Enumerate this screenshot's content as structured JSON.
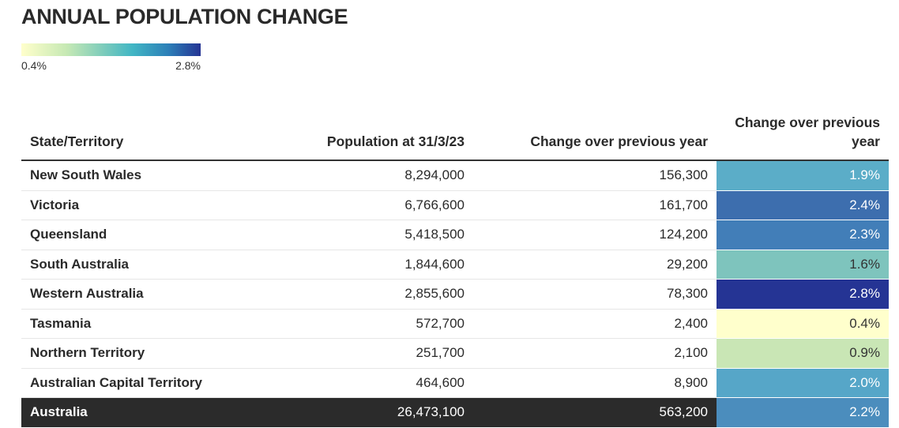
{
  "title": "ANNUAL POPULATION CHANGE",
  "legend": {
    "min_label": "0.4%",
    "max_label": "2.8%"
  },
  "chart_data": {
    "type": "table",
    "title": "ANNUAL POPULATION CHANGE",
    "color_scale": {
      "min": 0.4,
      "max": 2.8,
      "colors": [
        "#ffffcc",
        "#c7e9b4",
        "#7fcdbb",
        "#41b6c4",
        "#2c7fb8",
        "#253494"
      ]
    },
    "columns": [
      "State/Territory",
      "Population at 31/3/23",
      "Change over previous year",
      "Change over previous year"
    ],
    "rows": [
      {
        "state": "New South Wales",
        "population": "8,294,000",
        "change": "156,300",
        "pct": "1.9%",
        "pct_value": 1.9,
        "color": "#5badc8"
      },
      {
        "state": "Victoria",
        "population": "6,766,600",
        "change": "161,700",
        "pct": "2.4%",
        "pct_value": 2.4,
        "color": "#3d6eae"
      },
      {
        "state": "Queensland",
        "population": "5,418,500",
        "change": "124,200",
        "pct": "2.3%",
        "pct_value": 2.3,
        "color": "#427eb8"
      },
      {
        "state": "South Australia",
        "population": "1,844,600",
        "change": "29,200",
        "pct": "1.6%",
        "pct_value": 1.6,
        "color": "#7ec4bd"
      },
      {
        "state": "Western Australia",
        "population": "2,855,600",
        "change": "78,300",
        "pct": "2.8%",
        "pct_value": 2.8,
        "color": "#253494"
      },
      {
        "state": "Tasmania",
        "population": "572,700",
        "change": "2,400",
        "pct": "0.4%",
        "pct_value": 0.4,
        "color": "#ffffcc"
      },
      {
        "state": "Northern Territory",
        "population": "251,700",
        "change": "2,100",
        "pct": "0.9%",
        "pct_value": 0.9,
        "color": "#c9e6b5"
      },
      {
        "state": "Australian Capital Territory",
        "population": "464,600",
        "change": "8,900",
        "pct": "2.0%",
        "pct_value": 2.0,
        "color": "#56a6c8"
      }
    ],
    "total": {
      "state": "Australia",
      "population": "26,473,100",
      "change": "563,200",
      "pct": "2.2%",
      "pct_value": 2.2,
      "color": "#4b8dbd"
    }
  }
}
